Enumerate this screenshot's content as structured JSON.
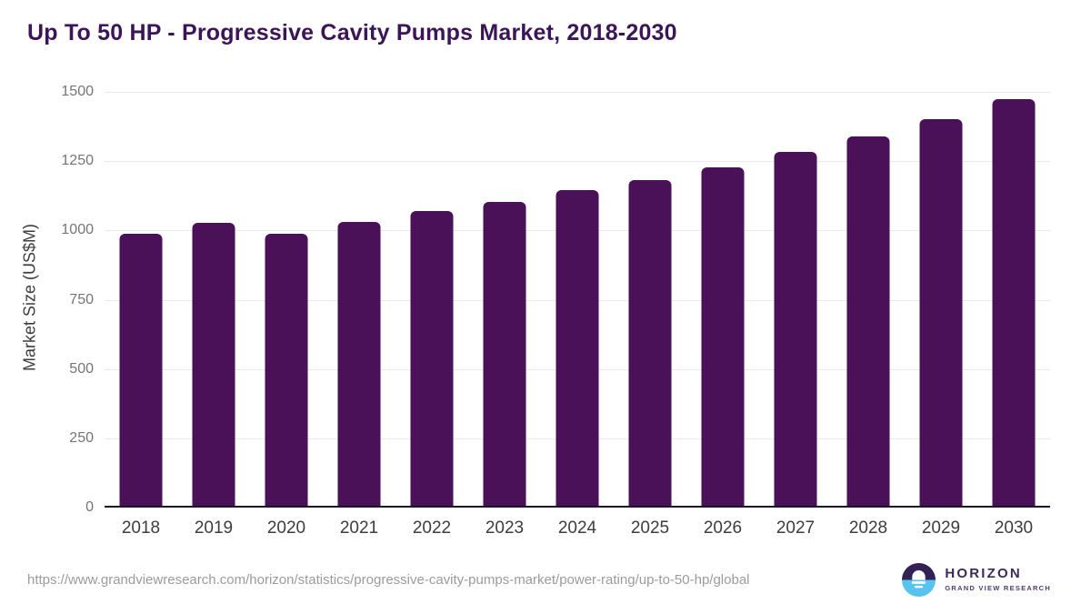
{
  "title": "Up To 50 HP - Progressive Cavity Pumps Market, 2018-2030",
  "footer": {
    "source_url": "https://www.grandviewresearch.com/horizon/statistics/progressive-cavity-pumps-market/power-rating/up-to-50-hp/global",
    "logo": {
      "name": "HORIZON",
      "subtitle": "GRAND VIEW RESEARCH"
    }
  },
  "colors": {
    "bar": "#4A1159",
    "title_text": "#3B1557",
    "axis_line": "#1A1433",
    "gridline": "#E9E9EC",
    "ytick_text": "#757575",
    "xtick_text": "#3D3D3D",
    "url_text": "#9B9B9B",
    "logo_purple": "#342153",
    "logo_blue": "#59C3F0"
  },
  "chart_data": {
    "type": "bar",
    "title": "Up To 50 HP - Progressive Cavity Pumps Market, 2018-2030",
    "xlabel": "",
    "ylabel": "Market Size (US$M)",
    "categories": [
      "2018",
      "2019",
      "2020",
      "2021",
      "2022",
      "2023",
      "2024",
      "2025",
      "2026",
      "2027",
      "2028",
      "2029",
      "2030"
    ],
    "values": [
      980,
      1020,
      980,
      1023,
      1064,
      1096,
      1139,
      1174,
      1221,
      1276,
      1334,
      1396,
      1466
    ],
    "ylim": [
      0,
      1500
    ],
    "yticks": [
      0,
      250,
      500,
      750,
      1000,
      1250,
      1500
    ],
    "grid": true,
    "legend": false,
    "bar_color": "#4A1159"
  }
}
